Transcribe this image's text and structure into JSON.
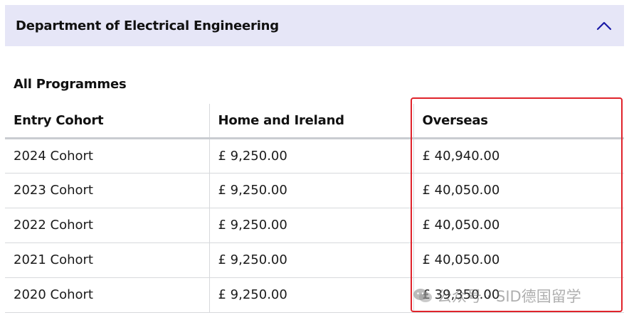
{
  "accordion": {
    "title": "Department of Electrical Engineering",
    "state_icon": "chevron-up-icon"
  },
  "section": {
    "title": "All Programmes"
  },
  "table": {
    "headers": [
      "Entry Cohort",
      "Home and Ireland",
      "Overseas"
    ],
    "rows": [
      [
        "2024 Cohort",
        "£ 9,250.00",
        "£ 40,940.00"
      ],
      [
        "2023 Cohort",
        "£ 9,250.00",
        "£ 40,050.00"
      ],
      [
        "2022 Cohort",
        "£ 9,250.00",
        "£ 40,050.00"
      ],
      [
        "2021 Cohort",
        "£ 9,250.00",
        "£ 40,050.00"
      ],
      [
        "2020 Cohort",
        "£ 9,250.00",
        "£ 39,350.00"
      ]
    ]
  },
  "annotation": {
    "highlight_color": "#e0232b",
    "highlighted_column": "Overseas"
  },
  "watermark": {
    "text": "公众号 · SID德国留学",
    "icon": "wechat-icon"
  },
  "colors": {
    "header_bg": "#e6e6f7",
    "chevron": "#1a1aa6",
    "grid": "#d7d9dc"
  }
}
